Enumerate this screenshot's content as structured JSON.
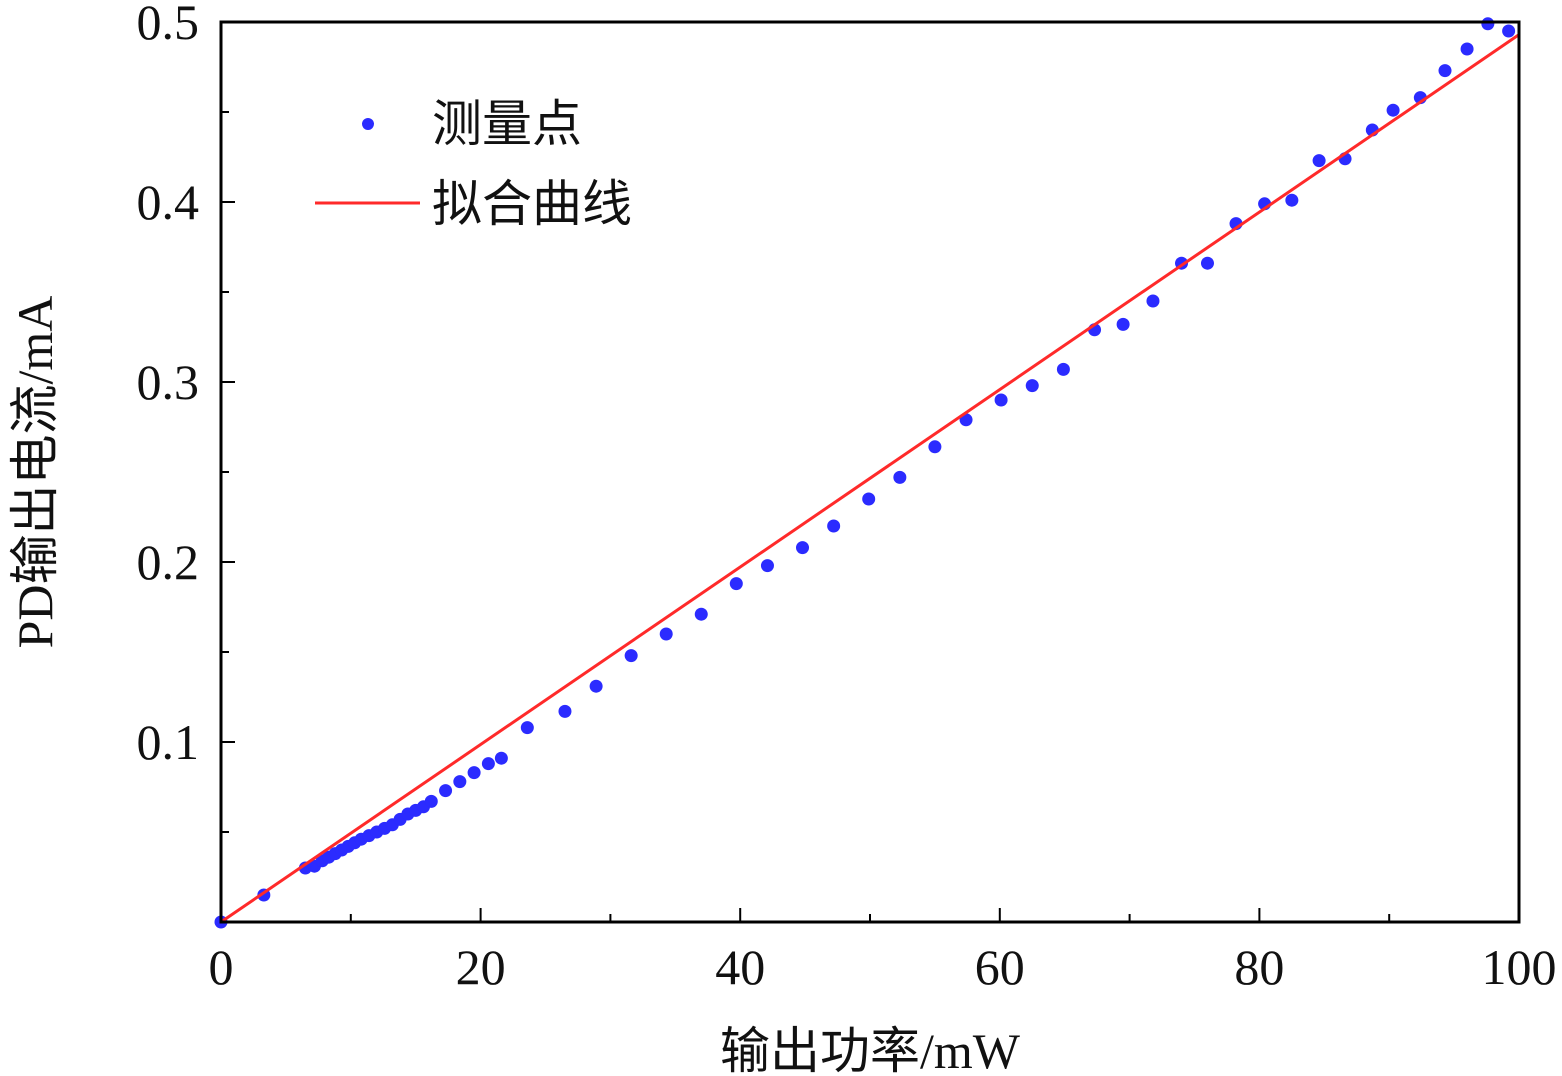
{
  "chart_data": {
    "type": "scatter",
    "title": "",
    "xlabel": "输出功率/mW",
    "ylabel": "PD输出电流/mA",
    "xlim": [
      0,
      100
    ],
    "ylim": [
      0,
      0.5
    ],
    "x_ticks": [
      "0",
      "20",
      "40",
      "60",
      "80",
      "100"
    ],
    "y_ticks": [
      "0.1",
      "0.2",
      "0.3",
      "0.4",
      "0.5"
    ],
    "legend_position": "top-left",
    "series": [
      {
        "name": "测量点",
        "kind": "scatter",
        "color": "#2b2bff",
        "points": [
          [
            0,
            0.0
          ],
          [
            3.3,
            0.015
          ],
          [
            6.5,
            0.03
          ],
          [
            7.2,
            0.031
          ],
          [
            7.8,
            0.034
          ],
          [
            8.3,
            0.036
          ],
          [
            8.8,
            0.038
          ],
          [
            9.3,
            0.04
          ],
          [
            9.8,
            0.042
          ],
          [
            10.3,
            0.044
          ],
          [
            10.8,
            0.046
          ],
          [
            11.4,
            0.048
          ],
          [
            12.0,
            0.05
          ],
          [
            12.6,
            0.052
          ],
          [
            13.2,
            0.054
          ],
          [
            13.8,
            0.057
          ],
          [
            14.4,
            0.06
          ],
          [
            15.0,
            0.062
          ],
          [
            15.6,
            0.064
          ],
          [
            16.2,
            0.067
          ],
          [
            17.3,
            0.073
          ],
          [
            18.4,
            0.078
          ],
          [
            19.5,
            0.083
          ],
          [
            20.6,
            0.088
          ],
          [
            21.6,
            0.091
          ],
          [
            23.6,
            0.108
          ],
          [
            26.5,
            0.117
          ],
          [
            28.9,
            0.131
          ],
          [
            31.6,
            0.148
          ],
          [
            34.3,
            0.16
          ],
          [
            37.0,
            0.171
          ],
          [
            39.7,
            0.188
          ],
          [
            42.1,
            0.198
          ],
          [
            44.8,
            0.208
          ],
          [
            47.2,
            0.22
          ],
          [
            49.9,
            0.235
          ],
          [
            52.3,
            0.247
          ],
          [
            55.0,
            0.264
          ],
          [
            57.4,
            0.279
          ],
          [
            60.1,
            0.29
          ],
          [
            62.5,
            0.298
          ],
          [
            64.9,
            0.307
          ],
          [
            67.3,
            0.329
          ],
          [
            69.5,
            0.332
          ],
          [
            71.8,
            0.345
          ],
          [
            74.0,
            0.366
          ],
          [
            76.0,
            0.366
          ],
          [
            78.2,
            0.388
          ],
          [
            80.4,
            0.399
          ],
          [
            82.5,
            0.401
          ],
          [
            84.6,
            0.423
          ],
          [
            86.6,
            0.424
          ],
          [
            88.7,
            0.44
          ],
          [
            90.3,
            0.451
          ],
          [
            92.4,
            0.458
          ],
          [
            94.3,
            0.473
          ],
          [
            96.0,
            0.485
          ],
          [
            97.6,
            0.499
          ],
          [
            99.2,
            0.495
          ]
        ]
      },
      {
        "name": "拟合曲线",
        "kind": "line",
        "color": "#ff2a2a",
        "x": [
          0,
          100
        ],
        "y": [
          0.0,
          0.493
        ]
      }
    ]
  }
}
